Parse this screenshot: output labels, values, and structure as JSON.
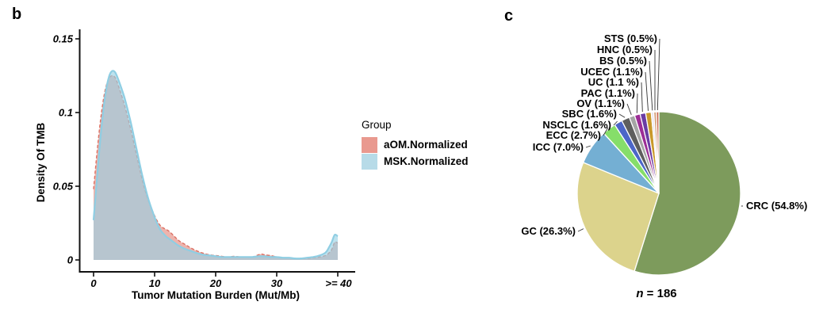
{
  "figure": {
    "panel_b_letter": "b",
    "panel_c_letter": "c"
  },
  "chart_data": [
    {
      "type": "area",
      "panel": "b",
      "title": "",
      "xlabel": "Tumor Mutation Burden (Mut/Mb)",
      "ylabel": "Density Of TMB",
      "xlim": [
        0,
        40
      ],
      "ylim": [
        0,
        0.155
      ],
      "grid": false,
      "legend_position": "right",
      "x_ticks": [
        {
          "v": 0,
          "label": "0"
        },
        {
          "v": 10,
          "label": "10"
        },
        {
          "v": 20,
          "label": "20"
        },
        {
          "v": 30,
          "label": "30"
        },
        {
          "v": 40,
          "label": ">= 40"
        }
      ],
      "y_ticks": [
        {
          "v": 0,
          "label": "0"
        },
        {
          "v": 0.05,
          "label": "0.05"
        },
        {
          "v": 0.1,
          "label": "0.1"
        },
        {
          "v": 0.15,
          "label": "0.15"
        }
      ],
      "legend": {
        "title": "Group",
        "entries": [
          {
            "label": "aOM.Normalized",
            "color": "#E9998F"
          },
          {
            "label": "MSK.Normalized",
            "color": "#B7DBE8"
          }
        ]
      },
      "x": [
        0,
        0.5,
        1,
        1.5,
        2,
        2.5,
        3,
        3.5,
        4,
        5,
        6,
        7,
        8,
        9,
        10,
        10.5,
        11,
        11.5,
        12,
        12.5,
        13,
        14,
        15,
        16,
        17,
        18,
        19,
        20,
        21,
        22,
        23,
        24,
        25,
        26,
        27,
        27.5,
        28,
        29,
        30,
        31,
        32,
        33,
        34,
        35,
        36,
        37,
        38,
        38.5,
        39,
        39.5,
        40
      ],
      "series": [
        {
          "name": "aOM.Normalized",
          "stroke": "#DC7265",
          "fill": "rgba(222,118,106,0.55)",
          "dashed": true,
          "values": [
            0.048,
            0.07,
            0.09,
            0.106,
            0.117,
            0.123,
            0.125,
            0.124,
            0.119,
            0.106,
            0.09,
            0.072,
            0.054,
            0.04,
            0.03,
            0.026,
            0.023,
            0.0215,
            0.0205,
            0.019,
            0.017,
            0.013,
            0.0105,
            0.008,
            0.006,
            0.0045,
            0.0035,
            0.003,
            0.0025,
            0.002,
            0.0025,
            0.002,
            0.002,
            0.002,
            0.0035,
            0.004,
            0.0035,
            0.003,
            0.002,
            0.0015,
            0.0015,
            0.001,
            0.001,
            0.001,
            0.0015,
            0.002,
            0.003,
            0.0045,
            0.007,
            0.012,
            0.0115
          ]
        },
        {
          "name": "MSK.Normalized",
          "stroke": "#8FCEE3",
          "fill": "rgba(150,208,227,0.62)",
          "dashed": false,
          "values": [
            0.027,
            0.052,
            0.077,
            0.098,
            0.114,
            0.124,
            0.128,
            0.1275,
            0.123,
            0.111,
            0.095,
            0.076,
            0.057,
            0.041,
            0.029,
            0.024,
            0.02,
            0.0175,
            0.0155,
            0.014,
            0.0125,
            0.0095,
            0.0075,
            0.006,
            0.0045,
            0.0035,
            0.003,
            0.0025,
            0.002,
            0.002,
            0.002,
            0.002,
            0.002,
            0.002,
            0.0025,
            0.0025,
            0.0025,
            0.002,
            0.002,
            0.0015,
            0.0015,
            0.001,
            0.001,
            0.0015,
            0.002,
            0.003,
            0.005,
            0.008,
            0.012,
            0.017,
            0.016
          ]
        }
      ]
    },
    {
      "type": "pie",
      "panel": "c",
      "n_label_italic": "n",
      "n_label_rest": " = 186",
      "slices": [
        {
          "name": "CRC",
          "pct": 54.8,
          "label": "CRC (54.8%)",
          "color": "#7D9B5C"
        },
        {
          "name": "GC",
          "pct": 26.3,
          "label": "GC (26.3%)",
          "color": "#DCD38C"
        },
        {
          "name": "ICC",
          "pct": 7.0,
          "label": "ICC (7.0%)",
          "color": "#74AFD3"
        },
        {
          "name": "ECC",
          "pct": 2.7,
          "label": "ECC (2.7%)",
          "color": "#86DE6A"
        },
        {
          "name": "NSCLC",
          "pct": 1.6,
          "label": "NSCLC (1.6%)",
          "color": "#4C66C8"
        },
        {
          "name": "SBC",
          "pct": 1.6,
          "label": "SBC (1.6%)",
          "color": "#5E5E5E"
        },
        {
          "name": "OV",
          "pct": 1.1,
          "label": "OV (1.1%)",
          "color": "#A5A5A5"
        },
        {
          "name": "PAC",
          "pct": 1.1,
          "label": "PAC (1.1%)",
          "color": "#9C2D96"
        },
        {
          "name": "UC",
          "pct": 1.1,
          "label": "UC (1.1 %)",
          "color": "#6A3CA4"
        },
        {
          "name": "UCEC",
          "pct": 1.1,
          "label": "UCEC (1.1%)",
          "color": "#C9992B"
        },
        {
          "name": "BS",
          "pct": 0.5,
          "label": "BS (0.5%)",
          "color": "#E8E4EF"
        },
        {
          "name": "HNC",
          "pct": 0.5,
          "label": "HNC (0.5%)",
          "color": "#D39A70"
        },
        {
          "name": "STS",
          "pct": 0.5,
          "label": "STS (0.5%)",
          "color": "#C96A52"
        }
      ],
      "label_positions": {
        "CRC": [
          941,
          264,
          "start"
        ],
        "GC": [
          726,
          296,
          "end"
        ],
        "ICC": [
          736,
          190,
          "end"
        ],
        "ECC": [
          758,
          175,
          "end"
        ],
        "NSCLC": [
          771,
          162,
          "end"
        ],
        "SBC": [
          778,
          148,
          "end"
        ],
        "OV": [
          788,
          135,
          "end"
        ],
        "PAC": [
          801,
          122,
          "end"
        ],
        "UC": [
          806,
          108,
          "end"
        ],
        "UCEC": [
          811,
          95,
          "end"
        ],
        "BS": [
          816,
          81,
          "end"
        ],
        "HNC": [
          823,
          67,
          "end"
        ],
        "STS": [
          829,
          53,
          "end"
        ]
      }
    }
  ]
}
